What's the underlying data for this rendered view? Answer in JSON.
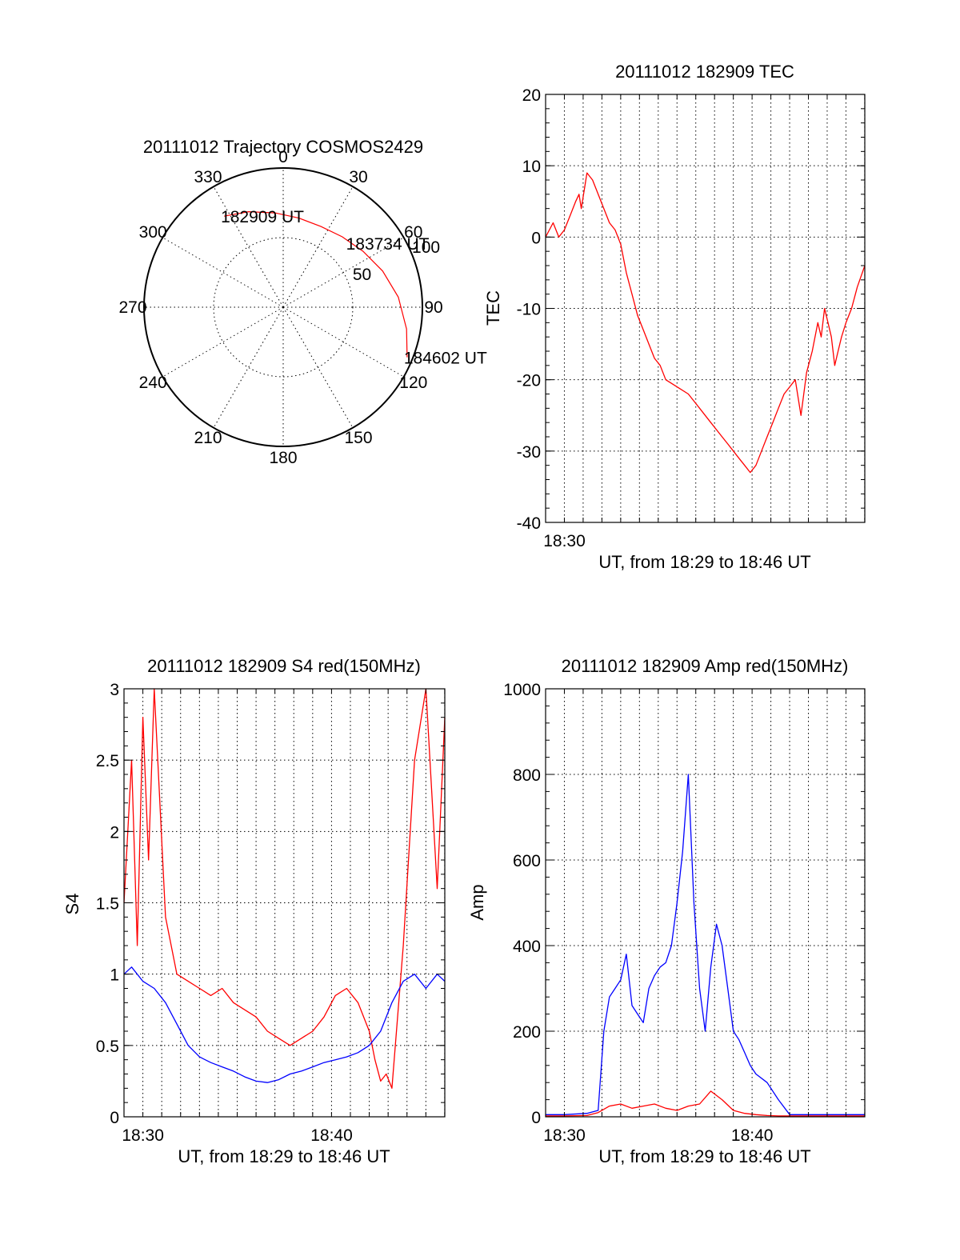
{
  "chart_data": [
    {
      "type": "polar",
      "title": "20111012 Trajectory COSMOS2429",
      "angle_labels": [
        "0",
        "30",
        "60",
        "90",
        "120",
        "150",
        "180",
        "210",
        "240",
        "270",
        "300",
        "330"
      ],
      "radial_labels": [
        "50",
        "100"
      ],
      "rlim": [
        0,
        100
      ],
      "grid": true,
      "series": [
        {
          "color": "#ff0000",
          "azimuth": [
            -33,
            -20,
            -5,
            10,
            25,
            40,
            55,
            70,
            85,
            100,
            112
          ],
          "radius": [
            78,
            73,
            68,
            65,
            64,
            66,
            70,
            76,
            83,
            90,
            96
          ]
        }
      ],
      "annotations": [
        {
          "text": "182909 UT",
          "azimuth": -33,
          "radius": 78
        },
        {
          "text": "183734 UT",
          "azimuth": 46,
          "radius": 66
        },
        {
          "text": "184602 UT",
          "azimuth": 112,
          "radius": 96
        }
      ]
    },
    {
      "type": "line",
      "title": "20111012 182909 TEC",
      "xlabel": "UT, from 18:29 to 18:46 UT",
      "ylabel": "TEC",
      "xlim": [
        18.4833,
        18.7667
      ],
      "ylim": [
        -40,
        20
      ],
      "yticks": [
        -40,
        -30,
        -20,
        -10,
        0,
        10,
        20
      ],
      "xtick_labels": [
        {
          "value": 18.5,
          "label": "18:30"
        }
      ],
      "grid": true,
      "series": [
        {
          "color": "#ff0000",
          "x": [
            18.4833,
            18.49,
            18.495,
            18.5,
            18.505,
            18.51,
            18.513,
            18.515,
            18.518,
            18.52,
            18.525,
            18.53,
            18.535,
            18.54,
            18.545,
            18.55,
            18.555,
            18.56,
            18.565,
            18.57,
            18.575,
            18.58,
            18.585,
            18.59,
            18.6,
            18.61,
            18.62,
            18.63,
            18.64,
            18.645,
            18.65,
            18.655,
            18.66,
            18.665,
            18.67,
            18.675,
            18.68,
            18.685,
            18.69,
            18.695,
            18.7,
            18.705,
            18.71,
            18.715,
            18.72,
            18.725,
            18.728,
            18.731,
            18.734,
            18.737,
            18.74,
            18.743,
            18.746,
            18.75,
            18.755,
            18.76,
            18.7667
          ],
          "values": [
            0,
            2,
            0,
            1,
            3,
            5,
            6,
            4,
            7,
            9,
            8,
            6,
            4,
            2,
            1,
            -1,
            -5,
            -8,
            -11,
            -13,
            -15,
            -17,
            -18,
            -20,
            -21,
            -22,
            -24,
            -26,
            -28,
            -29,
            -30,
            -31,
            -32,
            -33,
            -32,
            -30,
            -28,
            -26,
            -24,
            -22,
            -21,
            -20,
            -25,
            -19,
            -16,
            -12,
            -14,
            -10,
            -12,
            -14,
            -18,
            -16,
            -14,
            -12,
            -10,
            -7,
            -4
          ]
        }
      ]
    },
    {
      "type": "line",
      "title": "20111012 182909 S4 red(150MHz)",
      "xlabel": "UT, from 18:29 to 18:46 UT",
      "ylabel": "S4",
      "xlim": [
        18.4833,
        18.7667
      ],
      "ylim": [
        0,
        3
      ],
      "yticks": [
        0,
        0.5,
        1,
        1.5,
        2,
        2.5,
        3
      ],
      "xtick_labels": [
        {
          "value": 18.5,
          "label": "18:30"
        },
        {
          "value": 18.6667,
          "label": "18:40"
        }
      ],
      "grid": true,
      "series": [
        {
          "color": "#ff0000",
          "x": [
            18.4833,
            18.49,
            18.495,
            18.5,
            18.505,
            18.51,
            18.52,
            18.53,
            18.54,
            18.55,
            18.56,
            18.57,
            18.58,
            18.59,
            18.6,
            18.61,
            18.62,
            18.63,
            18.64,
            18.65,
            18.66,
            18.67,
            18.68,
            18.69,
            18.7,
            18.705,
            18.71,
            18.715,
            18.72,
            18.73,
            18.74,
            18.75,
            18.76,
            18.7667
          ],
          "values": [
            1.5,
            2.5,
            1.2,
            2.8,
            1.8,
            3.0,
            1.4,
            1.0,
            0.95,
            0.9,
            0.85,
            0.9,
            0.8,
            0.75,
            0.7,
            0.6,
            0.55,
            0.5,
            0.55,
            0.6,
            0.7,
            0.85,
            0.9,
            0.8,
            0.6,
            0.4,
            0.25,
            0.3,
            0.2,
            1.2,
            2.5,
            3.0,
            1.6,
            2.8
          ]
        },
        {
          "color": "#0000ff",
          "x": [
            18.4833,
            18.49,
            18.5,
            18.51,
            18.52,
            18.53,
            18.54,
            18.55,
            18.56,
            18.57,
            18.58,
            18.59,
            18.6,
            18.61,
            18.62,
            18.63,
            18.64,
            18.65,
            18.66,
            18.67,
            18.68,
            18.69,
            18.7,
            18.71,
            18.72,
            18.73,
            18.74,
            18.75,
            18.76,
            18.7667
          ],
          "values": [
            1.0,
            1.05,
            0.95,
            0.9,
            0.8,
            0.65,
            0.5,
            0.42,
            0.38,
            0.35,
            0.32,
            0.28,
            0.25,
            0.24,
            0.26,
            0.3,
            0.32,
            0.35,
            0.38,
            0.4,
            0.42,
            0.45,
            0.5,
            0.6,
            0.8,
            0.95,
            1.0,
            0.9,
            1.0,
            0.95
          ]
        }
      ]
    },
    {
      "type": "line",
      "title": "20111012 182909 Amp red(150MHz)",
      "xlabel": "UT, from 18:29 to 18:46 UT",
      "ylabel": "Amp",
      "xlim": [
        18.4833,
        18.7667
      ],
      "ylim": [
        0,
        1000
      ],
      "yticks": [
        0,
        200,
        400,
        600,
        800,
        1000
      ],
      "xtick_labels": [
        {
          "value": 18.5,
          "label": "18:30"
        },
        {
          "value": 18.6667,
          "label": "18:40"
        }
      ],
      "grid": true,
      "series": [
        {
          "color": "#0000ff",
          "x": [
            18.4833,
            18.5,
            18.52,
            18.53,
            18.535,
            18.54,
            18.545,
            18.55,
            18.555,
            18.56,
            18.565,
            18.57,
            18.575,
            18.58,
            18.585,
            18.59,
            18.595,
            18.6,
            18.605,
            18.61,
            18.615,
            18.62,
            18.625,
            18.63,
            18.635,
            18.64,
            18.645,
            18.65,
            18.655,
            18.66,
            18.665,
            18.67,
            18.68,
            18.69,
            18.7,
            18.71,
            18.72,
            18.73,
            18.74,
            18.75,
            18.76,
            18.7667
          ],
          "values": [
            5,
            5,
            8,
            15,
            200,
            280,
            300,
            320,
            380,
            260,
            240,
            220,
            300,
            330,
            350,
            360,
            400,
            500,
            620,
            800,
            500,
            300,
            200,
            350,
            450,
            400,
            300,
            200,
            180,
            150,
            120,
            100,
            80,
            40,
            5,
            5,
            5,
            5,
            5,
            5,
            5,
            5
          ]
        },
        {
          "color": "#ff0000",
          "x": [
            18.4833,
            18.5,
            18.52,
            18.53,
            18.54,
            18.55,
            18.56,
            18.57,
            18.58,
            18.59,
            18.6,
            18.61,
            18.62,
            18.63,
            18.64,
            18.65,
            18.66,
            18.67,
            18.68,
            18.69,
            18.7,
            18.72,
            18.74,
            18.76,
            18.7667
          ],
          "values": [
            2,
            2,
            3,
            10,
            25,
            30,
            20,
            25,
            30,
            20,
            15,
            25,
            30,
            60,
            40,
            15,
            8,
            5,
            3,
            2,
            2,
            2,
            2,
            2,
            2
          ]
        }
      ]
    }
  ]
}
